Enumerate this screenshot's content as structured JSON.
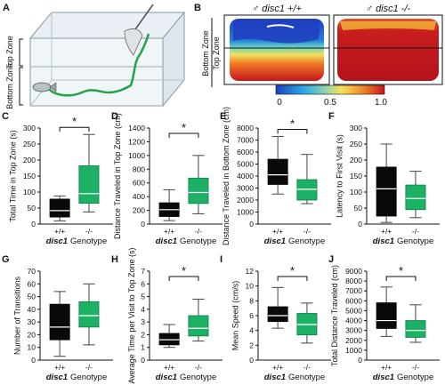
{
  "colors": {
    "wt": "#0a0a0a",
    "ko": "#1db165",
    "heat_low": "#1f3fbf",
    "heat_high": "#c7161c"
  },
  "panelA": {
    "letter": "A",
    "top_zone": "Top Zone",
    "bottom_zone": "Bottom Zone"
  },
  "panelB": {
    "letter": "B",
    "male_symbol": "♂",
    "genotype_wt": "disc1 +/+",
    "genotype_ko": "disc1 -/-",
    "top_zone": "Top Zone",
    "bottom_zone": "Bottom Zone",
    "scale_ticks": [
      "0",
      "0.5",
      "1.0"
    ]
  },
  "common": {
    "xticks": [
      "+/+",
      "-/-"
    ],
    "xlabel_gene": "disc1",
    "xlabel_word": "Genotype",
    "star": "*"
  },
  "chart_data": [
    {
      "id": "C",
      "type": "box",
      "ylabel": "Total Time in Top Zone (s)",
      "yticks": [
        0,
        50,
        100,
        150,
        200,
        250,
        300
      ],
      "ylim": [
        0,
        300
      ],
      "significant": true,
      "series": [
        {
          "name": "+/+",
          "whisker_low": 10,
          "q1": 22,
          "median": 42,
          "q3": 78,
          "whisker_high": 88
        },
        {
          "name": "-/-",
          "whisker_low": 38,
          "q1": 65,
          "median": 95,
          "q3": 182,
          "whisker_high": 280
        }
      ]
    },
    {
      "id": "D",
      "type": "box",
      "ylabel": "Distance Traveled in Top Zone (cm)",
      "yticks": [
        0,
        200,
        400,
        600,
        800,
        1000,
        1200,
        1400
      ],
      "ylim": [
        0,
        1400
      ],
      "significant": true,
      "series": [
        {
          "name": "+/+",
          "whisker_low": 50,
          "q1": 110,
          "median": 210,
          "q3": 310,
          "whisker_high": 500
        },
        {
          "name": "-/-",
          "whisker_low": 150,
          "q1": 300,
          "median": 460,
          "q3": 670,
          "whisker_high": 1000
        }
      ]
    },
    {
      "id": "E",
      "type": "box",
      "ylabel": "Distance Traveled in Bottom Zone (cm)",
      "yticks": [
        0,
        1000,
        2000,
        3000,
        4000,
        5000,
        6000,
        7000,
        8000
      ],
      "ylim": [
        0,
        8000
      ],
      "significant": true,
      "series": [
        {
          "name": "+/+",
          "whisker_low": 2500,
          "q1": 3300,
          "median": 4100,
          "q3": 5400,
          "whisker_high": 7300
        },
        {
          "name": "-/-",
          "whisker_low": 1700,
          "q1": 2000,
          "median": 2900,
          "q3": 3700,
          "whisker_high": 5800
        }
      ]
    },
    {
      "id": "F",
      "type": "box",
      "ylabel": "Latency to First Visit (s)",
      "yticks": [
        0,
        50,
        100,
        150,
        200,
        250,
        300
      ],
      "ylim": [
        0,
        300
      ],
      "significant": false,
      "series": [
        {
          "name": "+/+",
          "whisker_low": 5,
          "q1": 25,
          "median": 110,
          "q3": 178,
          "whisker_high": 250
        },
        {
          "name": "-/-",
          "whisker_low": 20,
          "q1": 45,
          "median": 80,
          "q3": 122,
          "whisker_high": 165
        }
      ]
    },
    {
      "id": "G",
      "type": "box",
      "ylabel": "Number of Transitions",
      "yticks": [
        0,
        10,
        20,
        30,
        40,
        50,
        60,
        70
      ],
      "ylim": [
        0,
        70
      ],
      "significant": false,
      "series": [
        {
          "name": "+/+",
          "whisker_low": 3,
          "q1": 16,
          "median": 26,
          "q3": 44,
          "whisker_high": 54
        },
        {
          "name": "-/-",
          "whisker_low": 12,
          "q1": 26,
          "median": 35,
          "q3": 46,
          "whisker_high": 60
        }
      ]
    },
    {
      "id": "H",
      "type": "box",
      "ylabel": "Average Time per Visit to Top Zone (s)",
      "yticks": [
        0,
        1,
        2,
        3,
        4,
        5,
        6,
        7
      ],
      "ylim": [
        0,
        7
      ],
      "significant": true,
      "series": [
        {
          "name": "+/+",
          "whisker_low": 1.0,
          "q1": 1.2,
          "median": 1.6,
          "q3": 2.1,
          "whisker_high": 2.8
        },
        {
          "name": "-/-",
          "whisker_low": 1.5,
          "q1": 1.9,
          "median": 2.5,
          "q3": 3.5,
          "whisker_high": 4.8
        }
      ]
    },
    {
      "id": "I",
      "type": "box",
      "ylabel": "Mean Speed (cm/s)",
      "yticks": [
        0,
        2,
        4,
        6,
        8,
        10,
        12
      ],
      "ylim": [
        0,
        12
      ],
      "significant": true,
      "series": [
        {
          "name": "+/+",
          "whisker_low": 4.3,
          "q1": 5.2,
          "median": 6.0,
          "q3": 7.2,
          "whisker_high": 9.8
        },
        {
          "name": "-/-",
          "whisker_low": 2.3,
          "q1": 3.4,
          "median": 4.8,
          "q3": 6.3,
          "whisker_high": 7.7
        }
      ]
    },
    {
      "id": "J",
      "type": "box",
      "ylabel": "Total Distance Traveled (cm)",
      "yticks": [
        0,
        1000,
        2000,
        3000,
        4000,
        5000,
        6000,
        7000,
        8000,
        9000
      ],
      "ylim": [
        0,
        9000
      ],
      "significant": true,
      "series": [
        {
          "name": "+/+",
          "whisker_low": 2400,
          "q1": 3200,
          "median": 4000,
          "q3": 5800,
          "whisker_high": 7400
        },
        {
          "name": "-/-",
          "whisker_low": 1800,
          "q1": 2300,
          "median": 3000,
          "q3": 4000,
          "whisker_high": 5600
        }
      ]
    }
  ]
}
